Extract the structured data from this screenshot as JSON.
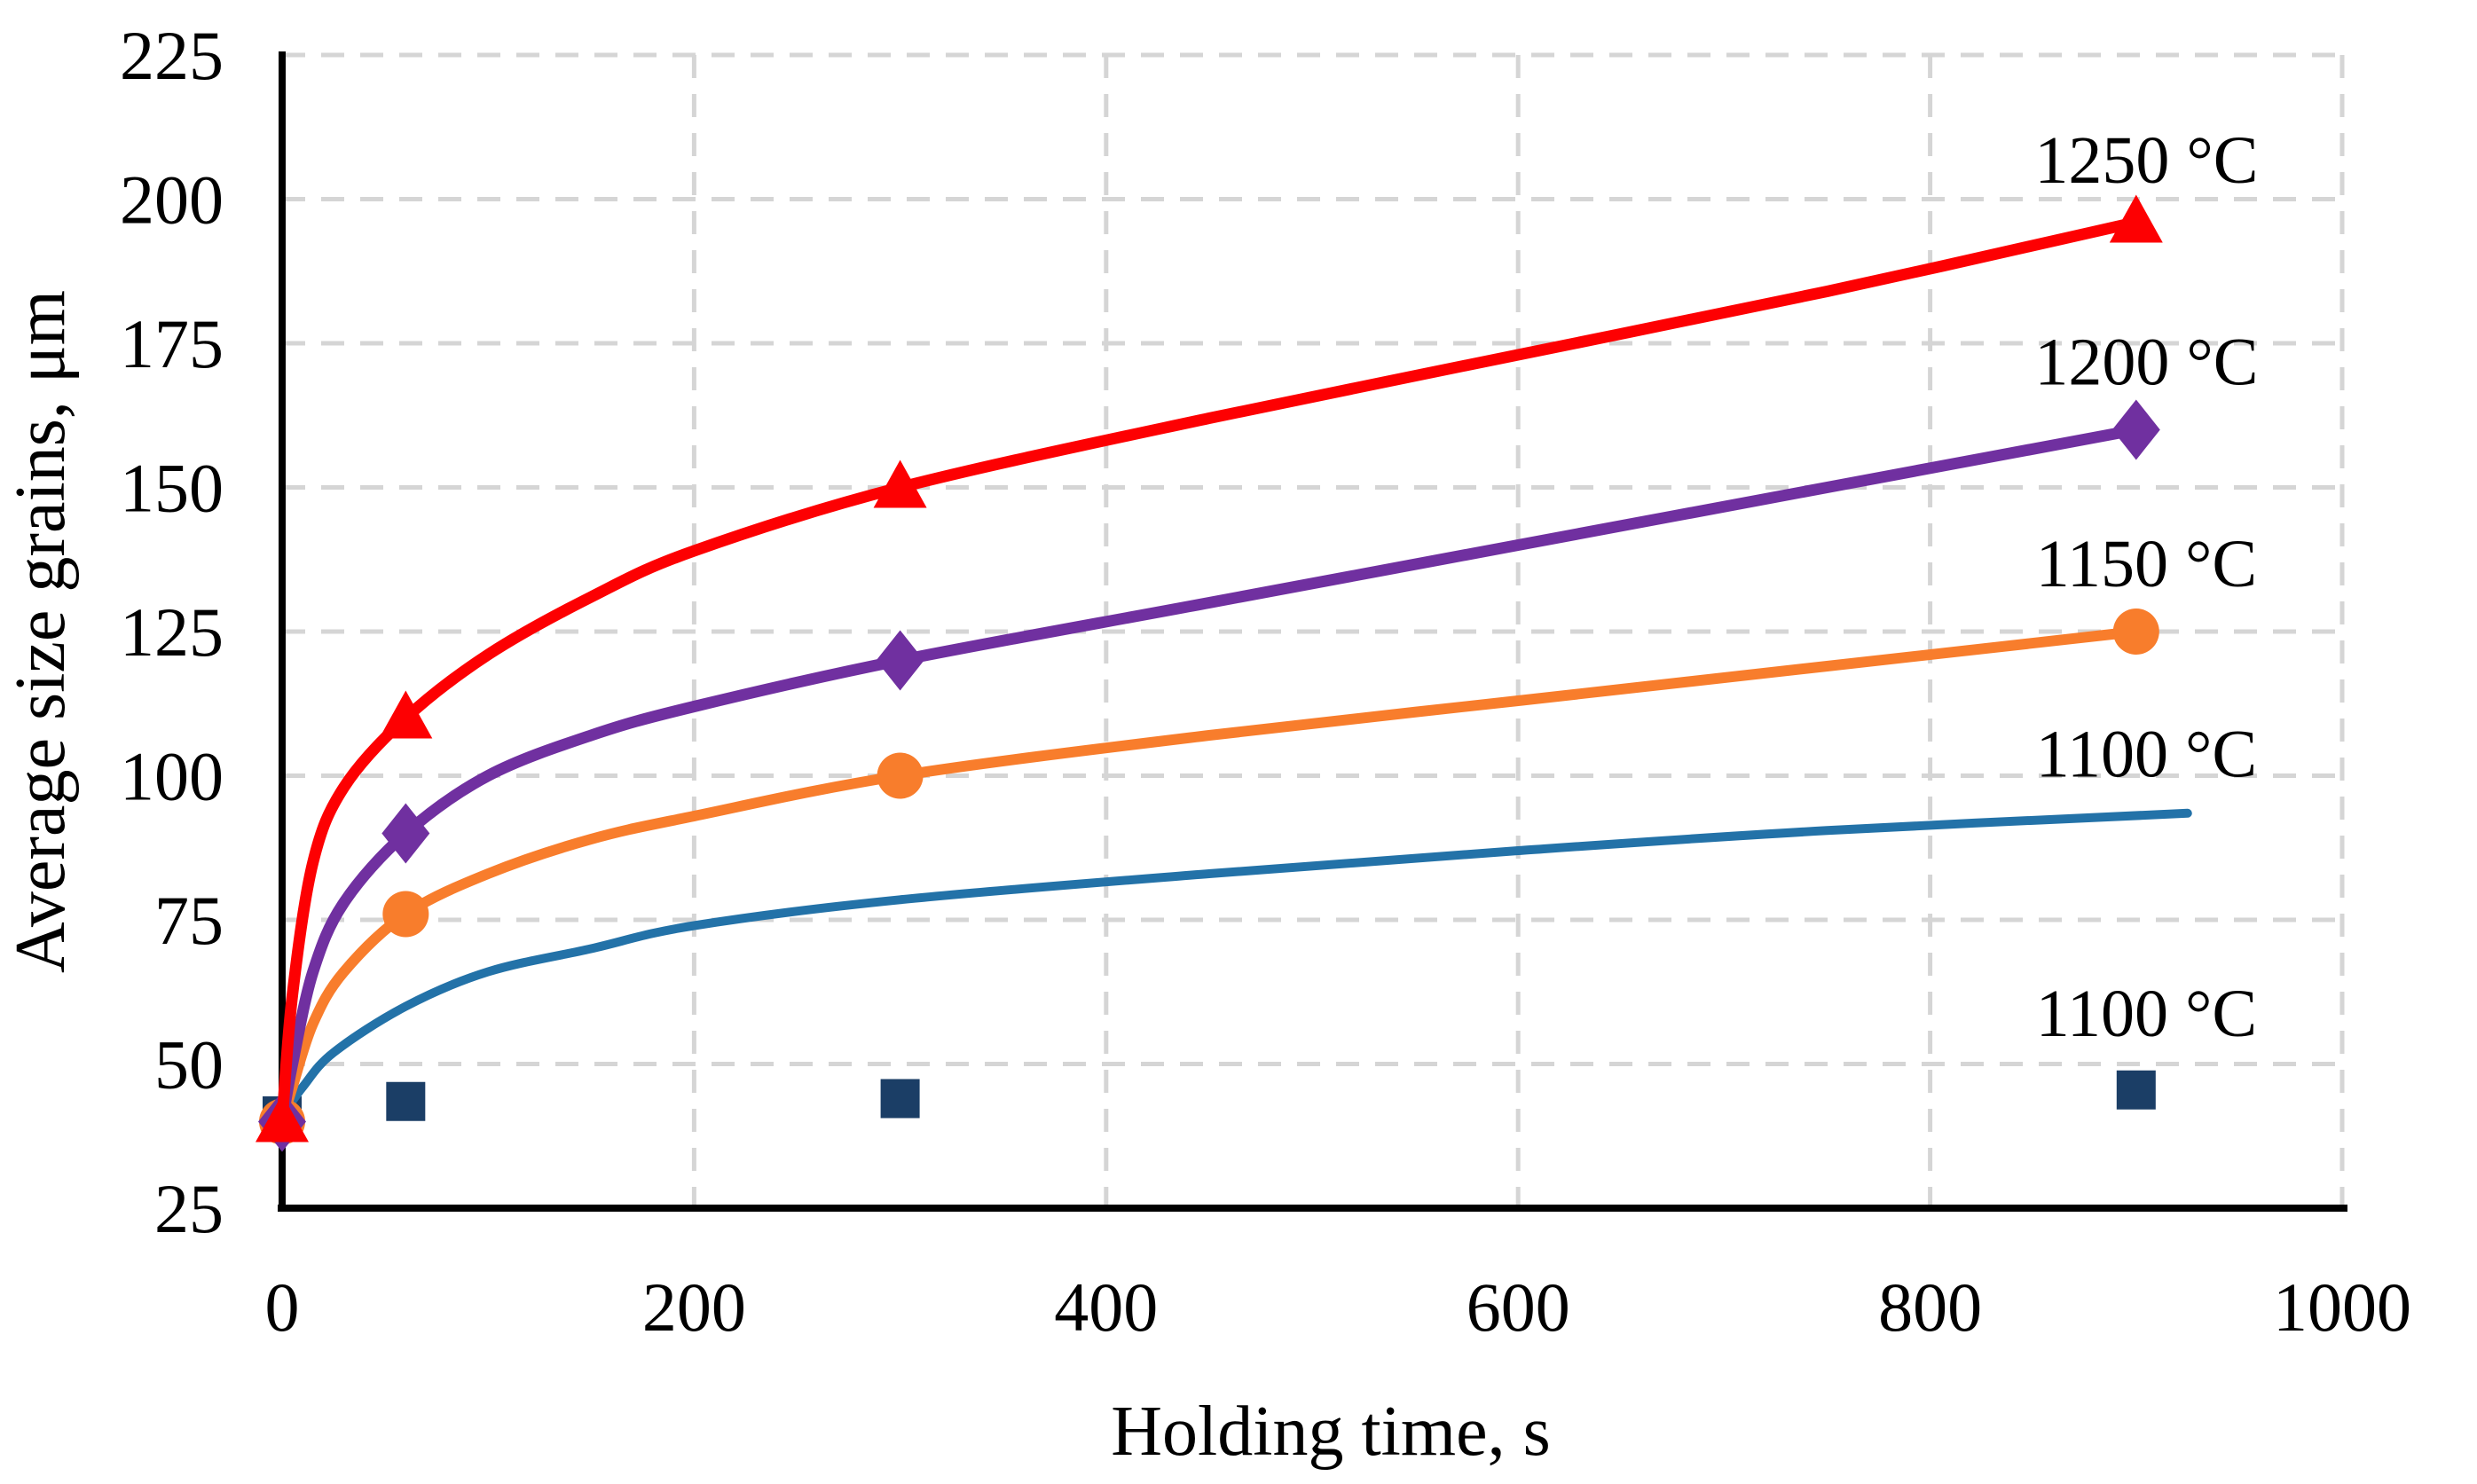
{
  "chart_data": {
    "type": "line",
    "title": "",
    "xlabel": "Holding time, s",
    "ylabel": "Average size grains, μm",
    "xlim": [
      0,
      1000
    ],
    "ylim": [
      25,
      225
    ],
    "x_ticks": [
      0,
      200,
      400,
      600,
      800,
      1000
    ],
    "y_ticks": [
      25,
      50,
      75,
      100,
      125,
      150,
      175,
      200,
      225
    ],
    "grid": "dashed",
    "grid_color": "#d5d5d5",
    "axis_color": "#000000",
    "background": "#ffffff",
    "legend_position": "right-inline-labels",
    "series_label_x": 905,
    "series": [
      {
        "key": "1250c",
        "name": "1250 °C",
        "temperature_c": 1250,
        "color": "#fd0002",
        "marker": "triangle",
        "label_y": 207,
        "points": [
          [
            0,
            40
          ],
          [
            60,
            110
          ],
          [
            300,
            150
          ],
          [
            900,
            196
          ]
        ],
        "curve": [
          [
            0,
            40
          ],
          [
            5,
            62
          ],
          [
            15,
            85
          ],
          [
            30,
            98
          ],
          [
            60,
            110
          ],
          [
            100,
            121
          ],
          [
            150,
            131
          ],
          [
            200,
            139
          ],
          [
            300,
            150
          ],
          [
            450,
            162
          ],
          [
            600,
            173
          ],
          [
            750,
            184
          ],
          [
            900,
            196
          ]
        ]
      },
      {
        "key": "1200c",
        "name": "1200 °C",
        "temperature_c": 1200,
        "color": "#7030a0",
        "marker": "diamond",
        "label_y": 172,
        "points": [
          [
            0,
            40
          ],
          [
            60,
            90
          ],
          [
            300,
            120
          ],
          [
            900,
            160
          ]
        ],
        "curve": [
          [
            0,
            40
          ],
          [
            5,
            50
          ],
          [
            15,
            66
          ],
          [
            30,
            78
          ],
          [
            60,
            90
          ],
          [
            100,
            100
          ],
          [
            150,
            107
          ],
          [
            200,
            112
          ],
          [
            300,
            120
          ],
          [
            450,
            130
          ],
          [
            600,
            140
          ],
          [
            750,
            150
          ],
          [
            900,
            160
          ]
        ]
      },
      {
        "key": "1150c",
        "name": "1150 °C",
        "temperature_c": 1150,
        "color": "#f87d2c",
        "marker": "circle",
        "label_y": 137,
        "points": [
          [
            0,
            40
          ],
          [
            60,
            76
          ],
          [
            300,
            100
          ],
          [
            900,
            125
          ]
        ],
        "curve": [
          [
            0,
            40
          ],
          [
            5,
            46
          ],
          [
            15,
            57
          ],
          [
            30,
            66
          ],
          [
            60,
            76
          ],
          [
            100,
            83
          ],
          [
            150,
            89
          ],
          [
            200,
            93
          ],
          [
            300,
            100
          ],
          [
            450,
            107
          ],
          [
            600,
            113
          ],
          [
            750,
            119
          ],
          [
            900,
            125
          ]
        ]
      },
      {
        "key": "1100c-fit",
        "name": "1100 °C",
        "temperature_c": 1100,
        "color": "#2372a8",
        "marker": "none",
        "label_y": 104,
        "points": [],
        "curve": [
          [
            0,
            41
          ],
          [
            10,
            46
          ],
          [
            25,
            52
          ],
          [
            60,
            60
          ],
          [
            100,
            66
          ],
          [
            150,
            70
          ],
          [
            200,
            74
          ],
          [
            300,
            78.5
          ],
          [
            450,
            83
          ],
          [
            600,
            87
          ],
          [
            750,
            90.5
          ],
          [
            925,
            93.5
          ]
        ]
      },
      {
        "key": "1100c-exp",
        "name": "1100 °C",
        "temperature_c": 1100,
        "color": "#1b3e66",
        "marker": "square",
        "label_y": 59,
        "points": [
          [
            0,
            41
          ],
          [
            60,
            43.5
          ],
          [
            300,
            44
          ],
          [
            900,
            45.5
          ]
        ],
        "curve": []
      }
    ]
  }
}
